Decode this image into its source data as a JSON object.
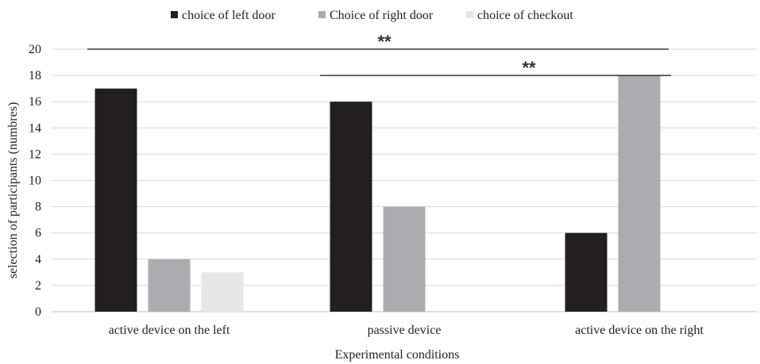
{
  "chart_data": {
    "type": "bar",
    "title": "",
    "xlabel": "Experimental conditions",
    "ylabel": "selection of participants (numbres)",
    "ylim": [
      0,
      20
    ],
    "yticks": [
      0,
      2,
      4,
      6,
      8,
      10,
      12,
      14,
      16,
      18,
      20
    ],
    "grid": true,
    "legend_position": "top",
    "categories": [
      "active device on the left",
      "passive device",
      "active device on the right"
    ],
    "series": [
      {
        "name": "choice of left door",
        "color": "#231f20",
        "values": [
          17,
          16,
          6
        ]
      },
      {
        "name": "Choice of right door",
        "color": "#abacaf",
        "values": [
          4,
          8,
          18
        ]
      },
      {
        "name": "choice of checkout",
        "color": "#e6e7e8",
        "values": [
          3,
          0,
          0
        ]
      }
    ],
    "annotations": [
      {
        "text": "**",
        "from_category": 0,
        "to_category": 2,
        "y": 20
      },
      {
        "text": "**",
        "from_category": 1,
        "to_category": 2,
        "y": 18
      }
    ]
  }
}
